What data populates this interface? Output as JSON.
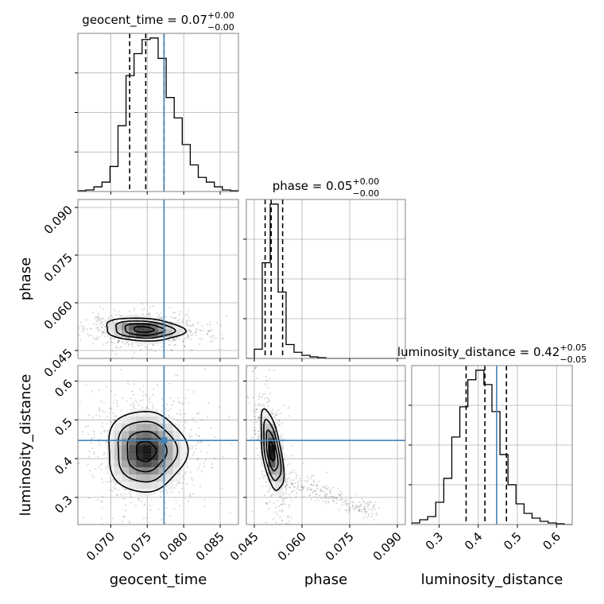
{
  "chart_data": {
    "type": "corner",
    "parameters": [
      {
        "name": "geocent_time",
        "xlabel": "geocent_time",
        "range": [
          0.0655,
          0.0875
        ],
        "ticks": [
          0.07,
          0.075,
          0.08,
          0.085
        ],
        "tick_labels": [
          "0.070",
          "0.075",
          "0.080",
          "0.085"
        ],
        "title": {
          "text": "geocent_time = 0.07",
          "plus": "+0.00",
          "minus": "−0.00"
        },
        "quantiles": [
          0.0726,
          0.0748,
          0.0773
        ],
        "truth": 0.0773,
        "histogram": [
          0.005,
          0.01,
          0.03,
          0.06,
          0.16,
          0.42,
          0.74,
          0.88,
          0.97,
          0.98,
          0.85,
          0.6,
          0.47,
          0.3,
          0.17,
          0.09,
          0.06,
          0.03,
          0.01,
          0.005
        ]
      },
      {
        "name": "phase",
        "xlabel": "phase",
        "ylabel": "phase",
        "range": [
          0.0425,
          0.0925
        ],
        "ticks": [
          0.045,
          0.06,
          0.075,
          0.09
        ],
        "tick_labels": [
          "0.045",
          "0.060",
          "0.075",
          "0.090"
        ],
        "title": {
          "text": "phase = 0.05",
          "plus": "+0.00",
          "minus": "−0.00"
        },
        "quantiles": [
          0.0484,
          0.0503,
          0.0539
        ],
        "histogram": [
          0.0,
          0.06,
          0.62,
          1.0,
          0.43,
          0.09,
          0.04,
          0.02,
          0.01,
          0.005,
          0.0,
          0.0,
          0.0,
          0.0,
          0.0,
          0.0,
          0.0,
          0.0,
          0.0,
          0.0
        ]
      },
      {
        "name": "luminosity_distance",
        "xlabel": "luminosity_distance",
        "ylabel": "luminosity_distance",
        "range": [
          0.23,
          0.64
        ],
        "ticks": [
          0.3,
          0.4,
          0.5,
          0.6
        ],
        "tick_labels": [
          "0.3",
          "0.4",
          "0.5",
          "0.6"
        ],
        "title": {
          "text": "luminosity_distance = 0.42",
          "plus": "+0.05",
          "minus": "−0.05"
        },
        "quantiles": [
          0.369,
          0.417,
          0.472
        ],
        "truth": 0.447,
        "histogram": [
          0.01,
          0.03,
          0.05,
          0.14,
          0.29,
          0.55,
          0.74,
          0.91,
          0.97,
          0.88,
          0.71,
          0.44,
          0.25,
          0.13,
          0.07,
          0.04,
          0.02,
          0.01,
          0.005,
          0.0
        ]
      }
    ],
    "truth_color": "#4682b4",
    "hist_color": "#000000",
    "grid": true,
    "contours": [
      {
        "x": "geocent_time",
        "y": "phase",
        "center": [
          0.0745,
          0.0516
        ],
        "sigma": [
          0.0027,
          0.0018
        ],
        "rho": -0.15
      },
      {
        "x": "geocent_time",
        "y": "luminosity_distance",
        "center": [
          0.0748,
          0.419
        ],
        "sigma": [
          0.0027,
          0.052
        ],
        "rho": 0.0
      },
      {
        "x": "phase",
        "y": "luminosity_distance",
        "center": [
          0.0505,
          0.419
        ],
        "sigma": [
          0.0018,
          0.052
        ],
        "rho": -0.55
      }
    ]
  }
}
